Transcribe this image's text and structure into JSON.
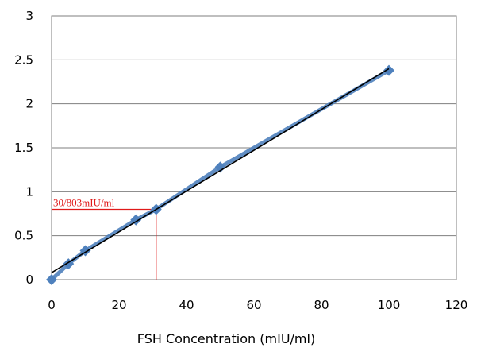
{
  "chart_data": {
    "type": "scatter",
    "title": "",
    "xlabel": "FSH Concentration (mIU/ml)",
    "ylabel": "",
    "xlim": [
      0,
      120
    ],
    "ylim": [
      0,
      3
    ],
    "xticks": [
      0,
      20,
      40,
      60,
      80,
      100,
      120
    ],
    "yticks": [
      0,
      0.5,
      1,
      1.5,
      2,
      2.5,
      3
    ],
    "ytick_labels": [
      "0",
      "0.5",
      "1",
      "1.5",
      "2",
      "2.5",
      "3"
    ],
    "grid": "horizontal",
    "series": [
      {
        "x": [
          0,
          5,
          10,
          25,
          31,
          50,
          100
        ],
        "y": [
          0.0,
          0.18,
          0.33,
          0.68,
          0.8,
          1.28,
          2.38
        ],
        "marker": "diamond",
        "color": "#4f81bd",
        "line": "connected"
      }
    ],
    "trendline": {
      "x": [
        0,
        100
      ],
      "y": [
        0.08,
        2.4
      ],
      "color": "#000000"
    },
    "annotation": {
      "text": "30/803mIU/ml",
      "x": 31,
      "y": 0.8,
      "color": "#e01a1a"
    }
  }
}
